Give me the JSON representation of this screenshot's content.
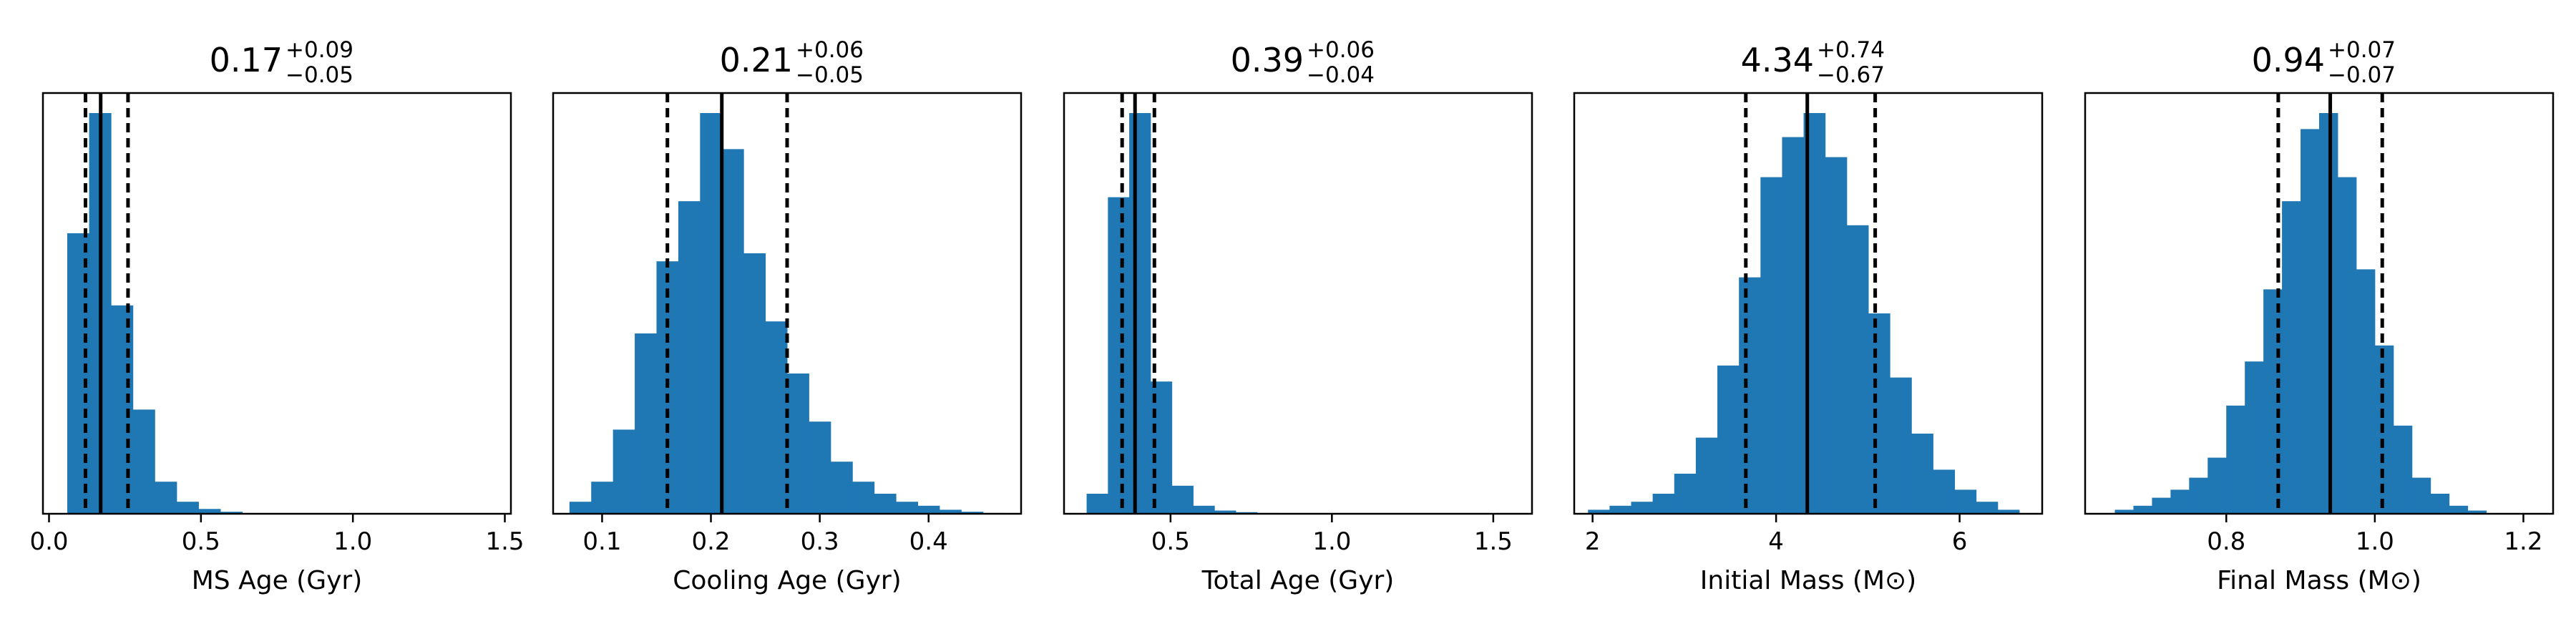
{
  "figure": {
    "bar_color": "#1f77b4",
    "line_color": "#000000"
  },
  "chart_data": [
    {
      "type": "bar",
      "title": {
        "median": "0.17",
        "plus": "+0.09",
        "minus": "−0.05"
      },
      "xlabel": "MS Age (Gyr)",
      "xlim": [
        -0.02,
        1.52
      ],
      "ylim": [
        0,
        1.05
      ],
      "xticks": [
        0.0,
        0.5,
        1.0,
        1.5
      ],
      "xtick_labels": [
        "0.0",
        "0.5",
        "1.0",
        "1.5"
      ],
      "bin_width": 0.072,
      "bins_start": 0.06,
      "values": [
        0.7,
        1.0,
        0.52,
        0.26,
        0.08,
        0.03,
        0.012,
        0.005
      ],
      "median": 0.17,
      "lower": 0.12,
      "upper": 0.26
    },
    {
      "type": "bar",
      "title": {
        "median": "0.21",
        "plus": "+0.06",
        "minus": "−0.05"
      },
      "xlabel": "Cooling Age (Gyr)",
      "xlim": [
        0.055,
        0.485
      ],
      "ylim": [
        0,
        1.05
      ],
      "xticks": [
        0.1,
        0.2,
        0.3,
        0.4
      ],
      "xtick_labels": [
        "0.1",
        "0.2",
        "0.3",
        "0.4"
      ],
      "bin_width": 0.02,
      "bins_start": 0.07,
      "values": [
        0.03,
        0.08,
        0.21,
        0.45,
        0.63,
        0.78,
        1.0,
        0.91,
        0.65,
        0.48,
        0.35,
        0.23,
        0.13,
        0.08,
        0.05,
        0.03,
        0.02,
        0.01,
        0.005,
        0.002
      ],
      "median": 0.21,
      "lower": 0.16,
      "upper": 0.27
    },
    {
      "type": "bar",
      "title": {
        "median": "0.39",
        "plus": "+0.06",
        "minus": "−0.04"
      },
      "xlabel": "Total Age (Gyr)",
      "xlim": [
        0.17,
        1.62
      ],
      "ylim": [
        0,
        1.05
      ],
      "xticks": [
        0.5,
        1.0,
        1.5
      ],
      "xtick_labels": [
        "0.5",
        "1.0",
        "1.5"
      ],
      "bin_width": 0.066,
      "bins_start": 0.24,
      "values": [
        0.05,
        0.79,
        1.0,
        0.33,
        0.07,
        0.02,
        0.008,
        0.004,
        0.002
      ],
      "median": 0.39,
      "lower": 0.35,
      "upper": 0.45
    },
    {
      "type": "bar",
      "title": {
        "median": "4.34",
        "plus": "+0.74",
        "minus": "−0.67"
      },
      "xlabel": "Initial Mass (M⊙)",
      "xlim": [
        1.8,
        6.9
      ],
      "ylim": [
        0,
        1.05
      ],
      "xticks": [
        2,
        4,
        6
      ],
      "xtick_labels": [
        "2",
        "4",
        "6"
      ],
      "bin_width": 0.235,
      "bins_start": 1.95,
      "values": [
        0.01,
        0.02,
        0.03,
        0.05,
        0.1,
        0.19,
        0.37,
        0.59,
        0.84,
        0.94,
        1.0,
        0.89,
        0.72,
        0.5,
        0.34,
        0.2,
        0.11,
        0.06,
        0.03,
        0.01
      ],
      "median": 4.34,
      "lower": 3.67,
      "upper": 5.08
    },
    {
      "type": "bar",
      "title": {
        "median": "0.94",
        "plus": "+0.07",
        "minus": "−0.07"
      },
      "xlabel": "Final Mass (M⊙)",
      "xlim": [
        0.61,
        1.24
      ],
      "ylim": [
        0,
        1.05
      ],
      "xticks": [
        0.8,
        1.0,
        1.2
      ],
      "xtick_labels": [
        "0.8",
        "1.0",
        "1.2"
      ],
      "bin_width": 0.025,
      "bins_start": 0.65,
      "values": [
        0.01,
        0.02,
        0.04,
        0.06,
        0.09,
        0.14,
        0.27,
        0.38,
        0.56,
        0.78,
        0.96,
        1.0,
        0.84,
        0.61,
        0.42,
        0.22,
        0.09,
        0.05,
        0.02,
        0.008
      ],
      "median": 0.94,
      "lower": 0.87,
      "upper": 1.01
    }
  ]
}
